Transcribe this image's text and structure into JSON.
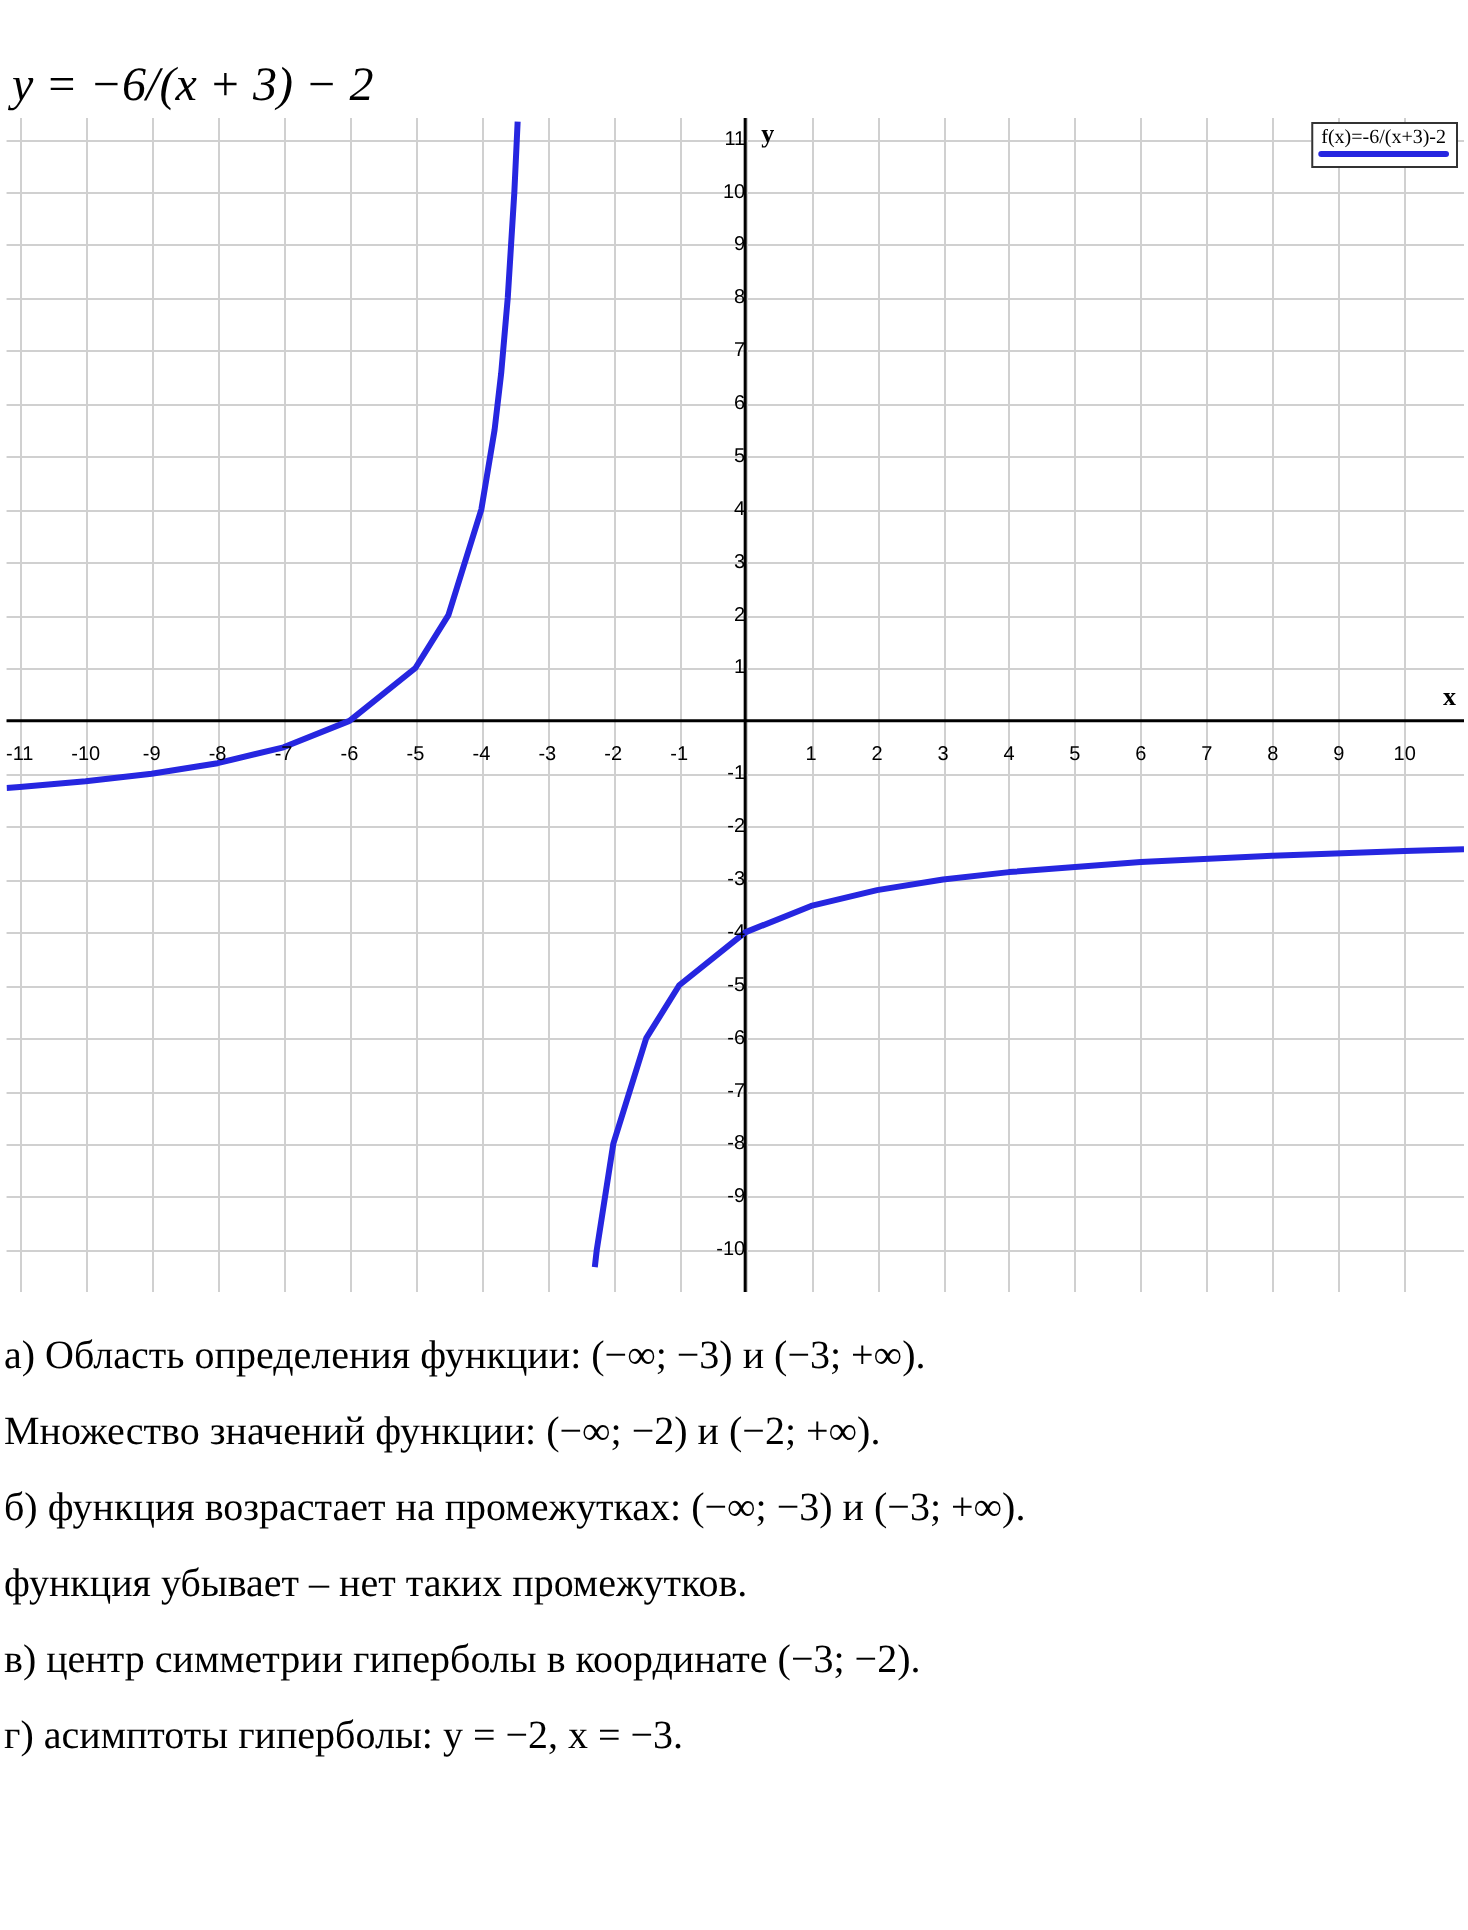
{
  "chart_data": {
    "type": "line",
    "title": "y = −6/(x + 3) − 2",
    "xlabel": "x",
    "ylabel": "y",
    "xlim": [
      -11.2,
      10.9
    ],
    "ylim": [
      -10.8,
      11.4
    ],
    "xticks": [
      -11,
      -10,
      -9,
      -8,
      -7,
      -6,
      -5,
      -4,
      -3,
      -2,
      -1,
      1,
      2,
      3,
      4,
      5,
      6,
      7,
      8,
      9,
      10
    ],
    "yticks": [
      -10,
      -9,
      -8,
      -7,
      -6,
      -5,
      -4,
      -3,
      -2,
      -1,
      1,
      2,
      3,
      4,
      5,
      6,
      7,
      8,
      9,
      10,
      11
    ],
    "grid": true,
    "legend": "top right",
    "marker": "none",
    "line_style": "solid",
    "series": [
      {
        "name": "f(x)=-6/(x+3)-2",
        "color": "#2626e0",
        "x": [
          -2.28,
          -2.25,
          -2,
          -1.5,
          -1,
          0,
          1,
          2,
          3,
          4,
          6,
          8,
          10,
          10.9
        ],
        "values": [
          -10.33,
          -10,
          -8,
          -6,
          -5,
          -4,
          -3.5,
          -3.2,
          -3,
          -2.86,
          -2.67,
          -2.55,
          -2.46,
          -2.43
        ]
      },
      {
        "color": "#2626e0",
        "x": [
          -11.2,
          -11,
          -10,
          -9,
          -8,
          -7,
          -6,
          -5,
          -4.5,
          -4,
          -3.8,
          -3.7,
          -3.6,
          -3.5,
          -3.45
        ],
        "values": [
          -1.27,
          -1.25,
          -1.14,
          -1,
          -0.8,
          -0.5,
          0,
          1,
          2,
          4,
          5.5,
          6.57,
          8,
          10,
          11.33
        ]
      }
    ],
    "annotations": [
      "а) Область определения функции: (−∞;  −3) и (−3;  +∞).",
      "Множество значений функции: (−∞;  −2) и (−2;  +∞).",
      "б)  функция возрастает на промежутках: (−∞;  −3) и (−3;  +∞).",
      "функция убывает – нет таких промежутков.",
      "в) центр симметрии гиперболы в координате (−3; −2).",
      "г)  асимптоты гиперболы: y = −2,       x = −3."
    ]
  }
}
